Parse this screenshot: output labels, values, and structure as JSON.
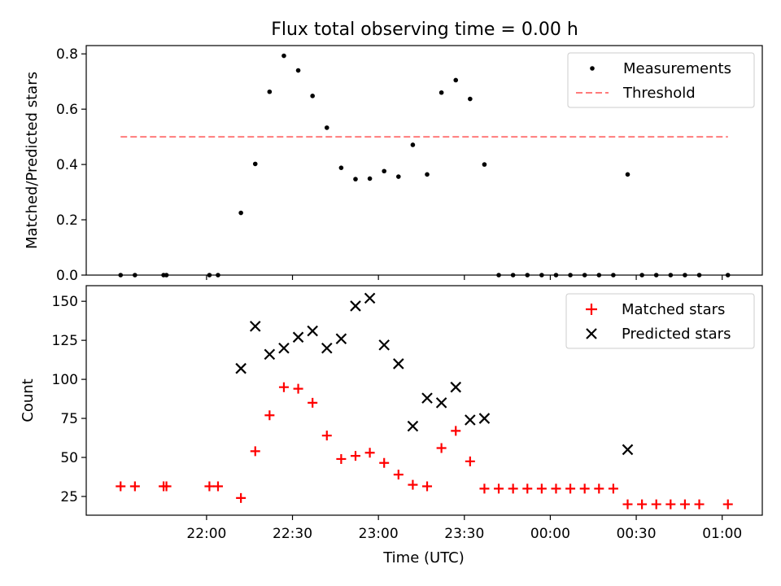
{
  "chart_data": [
    {
      "type": "scatter",
      "title": "Flux total observing time = 0.00 h",
      "xlabel": "",
      "ylabel": "Matched/Predicted stars",
      "ylim": [
        0,
        0.83
      ],
      "yticks": [
        0.0,
        0.2,
        0.4,
        0.6,
        0.8
      ],
      "ytick_labels": [
        "0.0",
        "0.2",
        "0.4",
        "0.6",
        "0.8"
      ],
      "legend_position": "top-right",
      "series": [
        {
          "name": "Measurements",
          "marker": "dot",
          "color": "#000000",
          "x_minutes": [
            -15,
            -10,
            0,
            1,
            16,
            19,
            27,
            32,
            37,
            42,
            47,
            52,
            57,
            62,
            67,
            72,
            77,
            82,
            87,
            92,
            97,
            102,
            107,
            112,
            117,
            122,
            127,
            132,
            137,
            142,
            147,
            152,
            157,
            162,
            167,
            172,
            177,
            182,
            187,
            197
          ],
          "y": [
            0,
            0,
            0,
            0,
            0,
            0,
            0.225,
            0.402,
            0.663,
            0.793,
            0.74,
            0.648,
            0.533,
            0.388,
            0.347,
            0.349,
            0.376,
            0.356,
            0.471,
            0.364,
            0.66,
            0.705,
            0.637,
            0.4,
            0,
            0,
            0,
            0,
            0,
            0,
            0,
            0,
            0,
            0.364,
            0,
            0,
            0,
            0,
            0,
            0
          ]
        },
        {
          "name": "Threshold",
          "marker": "dashed-line",
          "color": "#ff7b7b",
          "x_minutes": [
            -15,
            197
          ],
          "y": [
            0.5,
            0.5
          ]
        }
      ]
    },
    {
      "type": "scatter",
      "title": "",
      "xlabel": "Time (UTC)",
      "ylabel": "Count",
      "ylim": [
        13,
        160
      ],
      "yticks": [
        25,
        50,
        75,
        100,
        125,
        150
      ],
      "ytick_labels": [
        "25",
        "50",
        "75",
        "100",
        "125",
        "150"
      ],
      "x_ticks_minutes": [
        15,
        45,
        75,
        105,
        135,
        165,
        195
      ],
      "x_tick_labels": [
        "22:00",
        "22:30",
        "23:00",
        "23:30",
        "00:00",
        "00:30",
        "01:00"
      ],
      "legend_position": "top-right",
      "series": [
        {
          "name": "Matched stars",
          "marker": "plus",
          "color": "#ff0000",
          "x_minutes": [
            -15,
            -10,
            0,
            1,
            16,
            19,
            27,
            32,
            37,
            42,
            47,
            52,
            57,
            62,
            67,
            72,
            77,
            82,
            87,
            92,
            97,
            102,
            107,
            112,
            117,
            122,
            127,
            132,
            137,
            142,
            147,
            152,
            157,
            162,
            167,
            172,
            177,
            182,
            187,
            197
          ],
          "y": [
            31.5,
            31.5,
            31.5,
            31.5,
            31.5,
            31.5,
            24,
            54,
            77,
            95,
            94,
            85,
            64,
            49,
            51,
            53,
            46.5,
            39,
            32.5,
            31.5,
            56,
            67,
            47.5,
            30,
            30,
            30,
            30,
            30,
            30,
            30,
            30,
            30,
            30,
            20,
            20,
            20,
            20,
            20,
            20,
            20
          ]
        },
        {
          "name": "Predicted stars",
          "marker": "x",
          "color": "#000000",
          "x_minutes": [
            27,
            32,
            37,
            42,
            47,
            52,
            57,
            62,
            67,
            72,
            77,
            82,
            87,
            92,
            97,
            102,
            107,
            112,
            162
          ],
          "y": [
            107,
            134,
            116,
            120,
            127,
            131,
            120,
            126,
            147,
            152,
            122,
            110,
            70,
            88,
            85,
            95,
            74,
            75,
            55
          ]
        }
      ]
    }
  ]
}
